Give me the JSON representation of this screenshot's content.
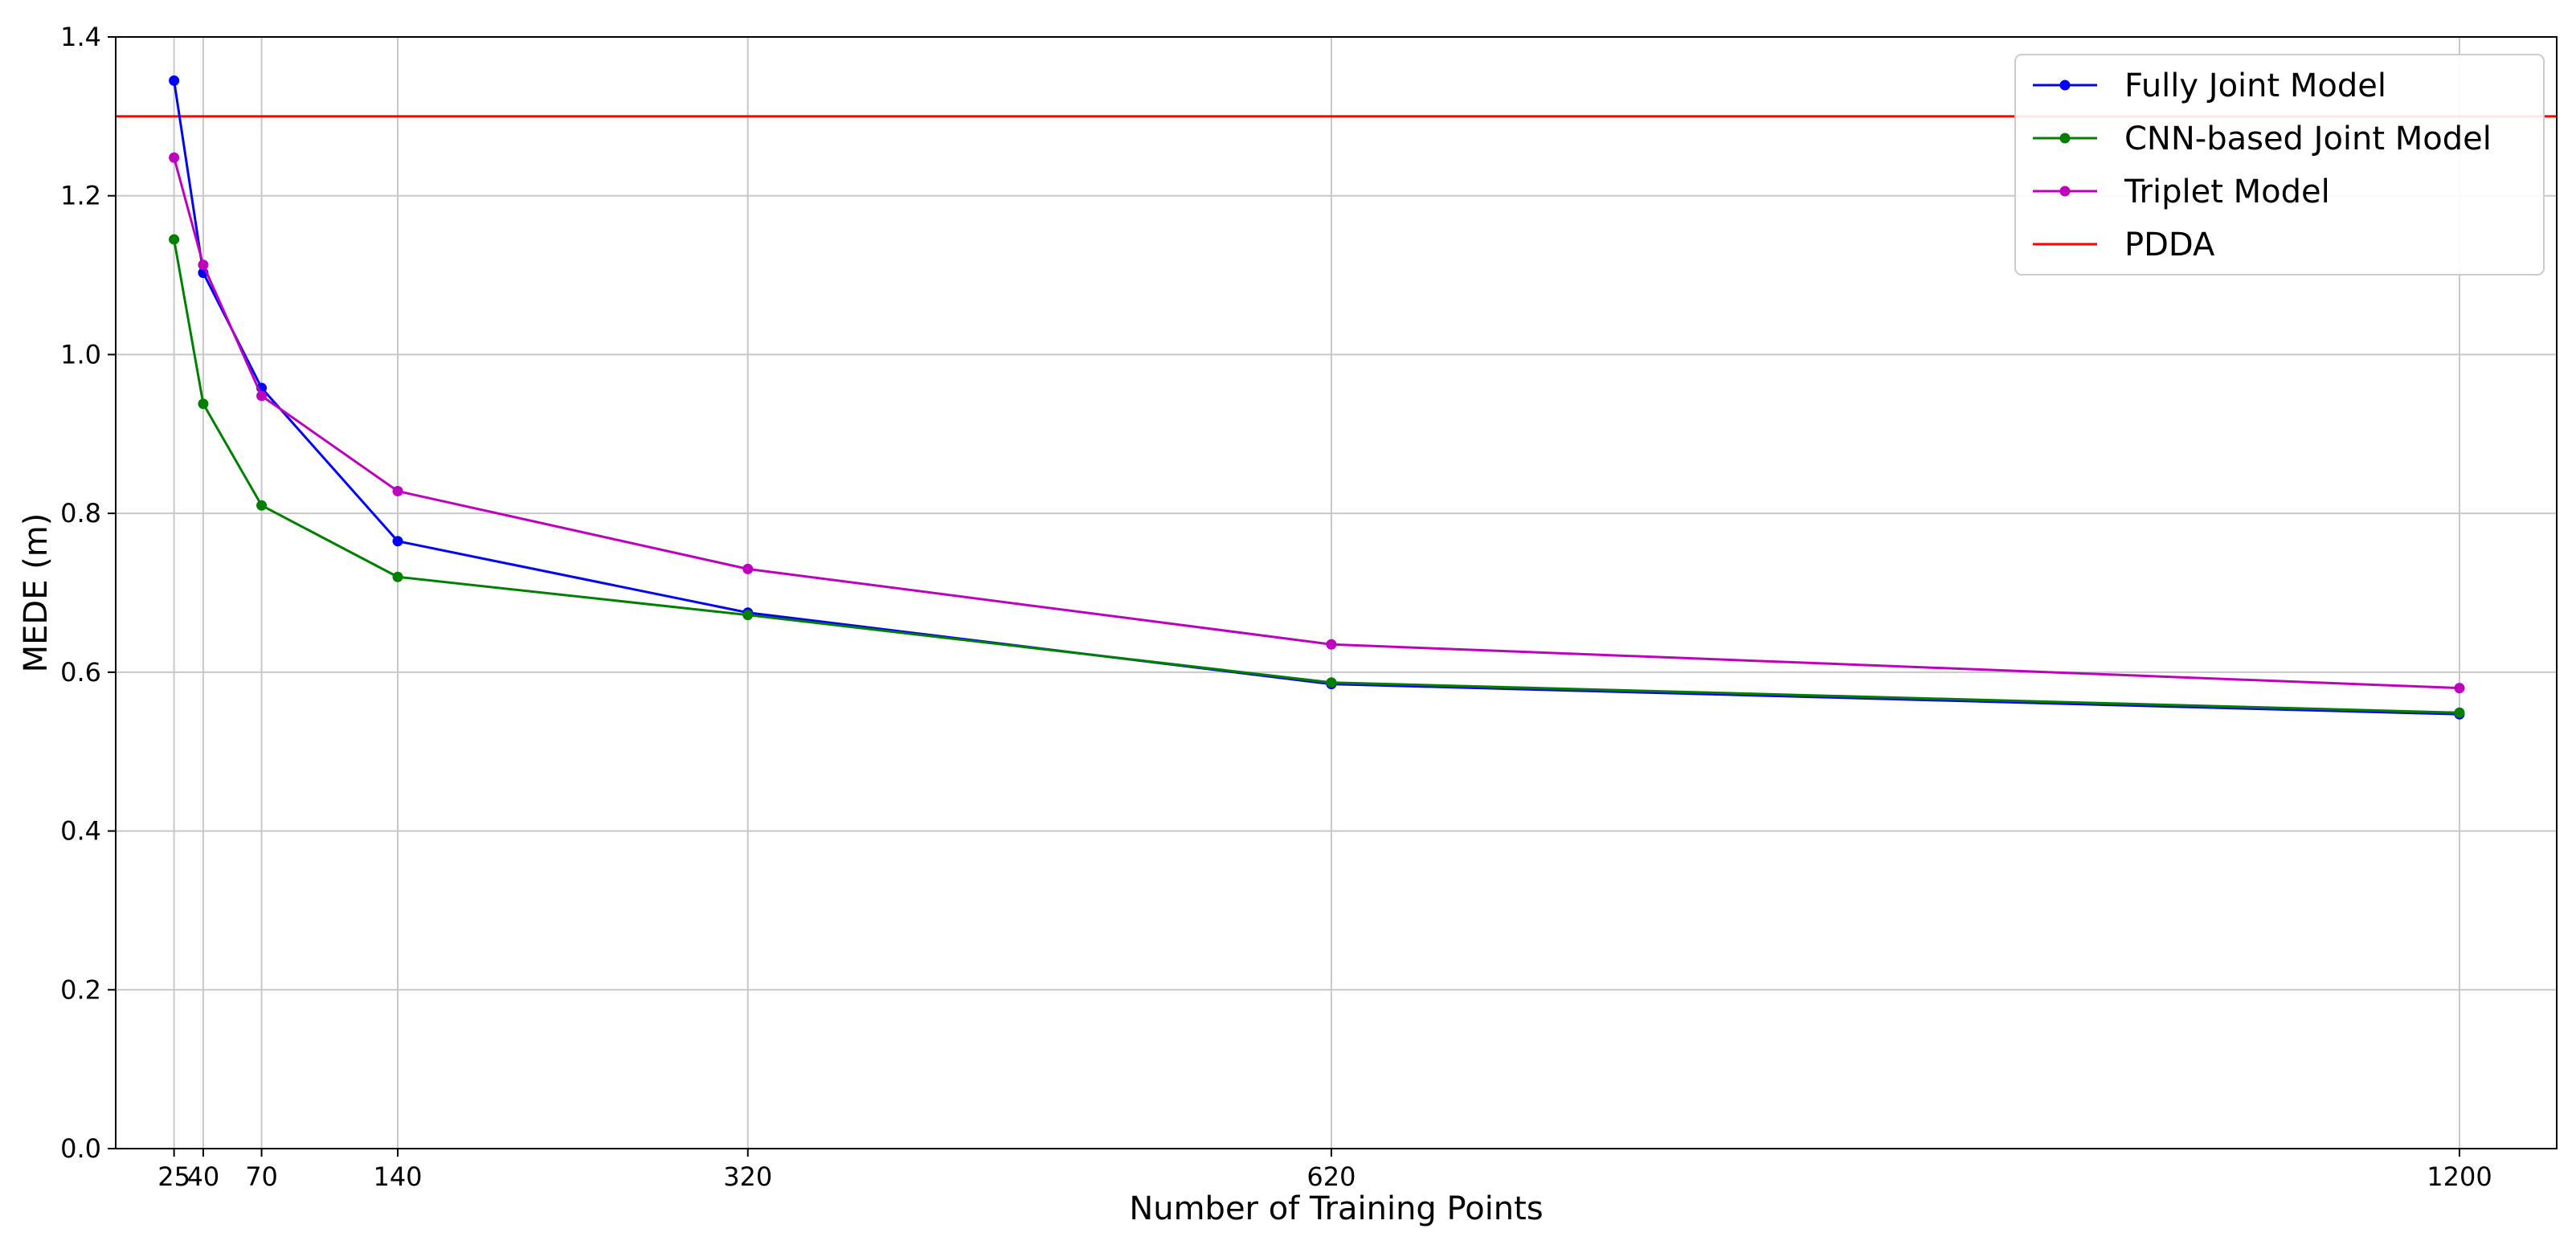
{
  "chart_data": {
    "type": "line",
    "title": "",
    "xlabel": "Number of Training Points",
    "ylabel": "MEDE (m)",
    "x": [
      25,
      40,
      70,
      140,
      320,
      620,
      1200
    ],
    "xlim": [
      -5,
      1250
    ],
    "ylim": [
      0.0,
      1.4
    ],
    "xticks": [
      25,
      40,
      70,
      140,
      320,
      620,
      1200
    ],
    "xtick_labels": [
      "25",
      "40",
      "70",
      "140",
      "320",
      "620",
      "1200"
    ],
    "yticks": [
      0.0,
      0.2,
      0.4,
      0.6,
      0.8,
      1.0,
      1.2,
      1.4
    ],
    "ytick_labels": [
      "0.0",
      "0.2",
      "0.4",
      "0.6",
      "0.8",
      "1.0",
      "1.2",
      "1.4"
    ],
    "grid": true,
    "legend_position": "top-right",
    "series": [
      {
        "name": "Fully Joint Model",
        "color": "#0000ff",
        "marker": true,
        "values": [
          1.345,
          1.103,
          0.958,
          0.765,
          0.675,
          0.585,
          0.547
        ]
      },
      {
        "name": "CNN-based Joint Model",
        "color": "#008000",
        "marker": true,
        "values": [
          1.145,
          0.938,
          0.81,
          0.72,
          0.672,
          0.587,
          0.549
        ]
      },
      {
        "name": "Triplet Model",
        "color": "#bf00bf",
        "marker": true,
        "values": [
          1.248,
          1.113,
          0.948,
          0.828,
          0.73,
          0.635,
          0.58
        ]
      }
    ],
    "reference_lines": [
      {
        "name": "PDDA",
        "color": "#ff0000",
        "y": 1.3
      }
    ]
  }
}
